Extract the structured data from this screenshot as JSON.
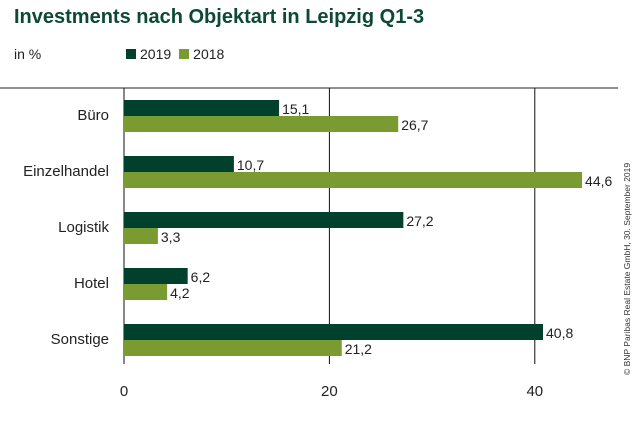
{
  "chart_data": {
    "type": "bar",
    "orientation": "horizontal",
    "title": "Investments nach Objektart in Leipzig Q1-3",
    "unit_label": "in %",
    "categories": [
      "Büro",
      "Einzelhandel",
      "Logistik",
      "Hotel",
      "Sonstige"
    ],
    "series": [
      {
        "name": "2019",
        "color": "#00402c",
        "values": [
          15.1,
          10.7,
          27.2,
          6.2,
          40.8
        ],
        "labels": [
          "15,1",
          "10,7",
          "27,2",
          "6,2",
          "40,8"
        ]
      },
      {
        "name": "2018",
        "color": "#7a9a32",
        "values": [
          26.7,
          44.6,
          3.3,
          4.2,
          21.2
        ],
        "labels": [
          "26,7",
          "44,6",
          "3,3",
          "4,2",
          "21,2"
        ]
      }
    ],
    "xlim": [
      0,
      50
    ],
    "xticks": [
      0,
      20,
      40
    ],
    "xtick_labels": [
      "0",
      "20",
      "40"
    ],
    "grid": "vertical",
    "legend_position": "top-left"
  },
  "source_note": "© BNP Paribas Real Estate GmbH, 30. September 2019"
}
